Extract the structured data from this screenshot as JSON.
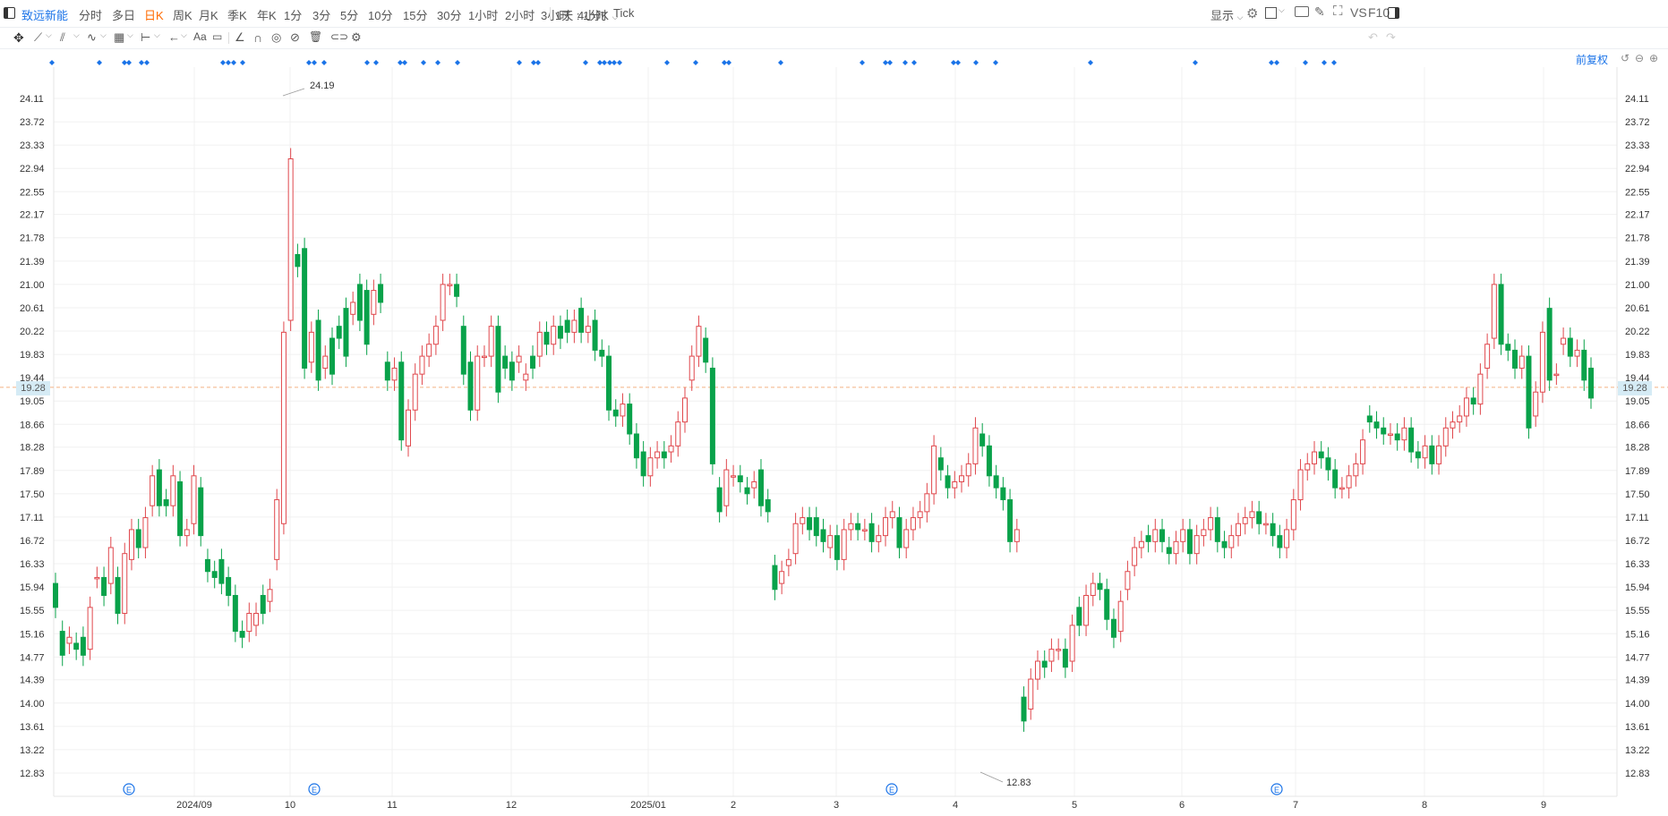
{
  "header": {
    "stock_name": "致远新能",
    "tabs": [
      "分时",
      "多日",
      "日K",
      "周K",
      "月K",
      "季K",
      "年K",
      "1分",
      "3分",
      "5分",
      "10分",
      "15分",
      "30分",
      "1小时",
      "2小时",
      "3小时",
      "4小时",
      "Tick"
    ],
    "active_tab": "日K",
    "period_select": "1天 : 1分K",
    "display_label": "显示",
    "vs_label": "VS",
    "f10_label": "F10"
  },
  "chart": {
    "adjust_label": "前复权",
    "y_ticks": [
      "24.11",
      "23.72",
      "23.33",
      "22.94",
      "22.55",
      "22.17",
      "21.78",
      "21.39",
      "21.00",
      "20.61",
      "20.22",
      "19.83",
      "19.44",
      "19.05",
      "18.66",
      "18.28",
      "17.89",
      "17.50",
      "17.11",
      "16.72",
      "16.33",
      "15.94",
      "15.55",
      "15.16",
      "14.77",
      "14.39",
      "14.00",
      "13.61",
      "13.22",
      "12.83"
    ],
    "x_ticks": [
      "2024/09",
      "10",
      "11",
      "12",
      "2025/01",
      "2",
      "3",
      "4",
      "5",
      "6",
      "7",
      "8",
      "9"
    ],
    "current_price": "19.28",
    "max_label": "24.19",
    "min_label": "12.83",
    "event_marker": "E",
    "up_color": "#e0474c",
    "down_color": "#09a24a",
    "accent_color": "#1a73e8"
  },
  "chart_data": {
    "type": "candlestick",
    "ylim": [
      12.83,
      24.11
    ],
    "candles": [
      [
        16.0,
        15.6
      ],
      [
        15.2,
        14.8
      ],
      [
        15.0,
        15.1
      ],
      [
        15.0,
        14.9
      ],
      [
        15.1,
        14.8
      ],
      [
        14.9,
        15.6
      ],
      [
        16.1,
        16.1
      ],
      [
        16.1,
        15.8
      ],
      [
        16.0,
        16.6
      ],
      [
        16.1,
        15.5
      ],
      [
        15.5,
        16.5
      ],
      [
        16.4,
        16.9
      ],
      [
        16.9,
        16.6
      ],
      [
        16.6,
        17.1
      ],
      [
        17.3,
        17.8
      ],
      [
        17.9,
        17.3
      ],
      [
        17.4,
        17.3
      ],
      [
        17.3,
        17.8
      ],
      [
        17.7,
        16.8
      ],
      [
        16.8,
        16.9
      ],
      [
        17.0,
        17.8
      ],
      [
        17.6,
        16.8
      ],
      [
        16.4,
        16.2
      ],
      [
        16.2,
        16.1
      ],
      [
        16.4,
        16.0
      ],
      [
        16.1,
        15.8
      ],
      [
        15.8,
        15.2
      ],
      [
        15.2,
        15.1
      ],
      [
        15.2,
        15.5
      ],
      [
        15.3,
        15.5
      ],
      [
        15.8,
        15.5
      ],
      [
        15.7,
        15.9
      ],
      [
        16.4,
        17.4
      ],
      [
        17.0,
        20.2
      ],
      [
        20.4,
        23.1
      ],
      [
        21.5,
        21.3
      ],
      [
        21.6,
        19.6
      ],
      [
        19.7,
        20.2
      ],
      [
        20.4,
        19.4
      ],
      [
        19.6,
        19.8
      ],
      [
        20.1,
        19.5
      ],
      [
        20.3,
        20.1
      ],
      [
        20.6,
        19.8
      ],
      [
        20.5,
        20.7
      ],
      [
        21.0,
        20.4
      ],
      [
        20.9,
        20.0
      ],
      [
        20.5,
        20.9
      ],
      [
        21.0,
        20.7
      ],
      [
        19.7,
        19.4
      ],
      [
        19.4,
        19.6
      ],
      [
        19.7,
        18.4
      ],
      [
        18.3,
        18.9
      ],
      [
        18.9,
        19.5
      ],
      [
        19.5,
        19.8
      ],
      [
        19.8,
        20.0
      ],
      [
        20.0,
        20.3
      ],
      [
        20.4,
        21.0
      ],
      [
        21.0,
        21.0
      ],
      [
        21.0,
        20.8
      ],
      [
        20.3,
        19.5
      ],
      [
        19.7,
        18.9
      ],
      [
        18.9,
        19.8
      ],
      [
        19.8,
        19.8
      ],
      [
        19.8,
        20.3
      ],
      [
        20.3,
        19.2
      ],
      [
        19.8,
        19.6
      ],
      [
        19.7,
        19.4
      ],
      [
        19.7,
        19.8
      ],
      [
        19.4,
        19.5
      ],
      [
        19.8,
        19.6
      ],
      [
        19.8,
        20.2
      ],
      [
        20.2,
        20.0
      ],
      [
        20.0,
        20.3
      ],
      [
        20.3,
        20.1
      ],
      [
        20.4,
        20.2
      ],
      [
        20.2,
        20.4
      ],
      [
        20.6,
        20.2
      ],
      [
        20.2,
        20.3
      ],
      [
        20.4,
        19.9
      ],
      [
        19.9,
        19.8
      ],
      [
        19.8,
        18.9
      ],
      [
        18.9,
        18.8
      ],
      [
        18.8,
        19.0
      ],
      [
        19.0,
        18.5
      ],
      [
        18.5,
        18.1
      ],
      [
        18.2,
        17.8
      ],
      [
        17.8,
        18.1
      ],
      [
        18.1,
        18.2
      ],
      [
        18.2,
        18.1
      ],
      [
        18.2,
        18.3
      ],
      [
        18.3,
        18.7
      ],
      [
        18.7,
        19.1
      ],
      [
        19.4,
        19.8
      ],
      [
        19.8,
        20.3
      ],
      [
        20.1,
        19.7
      ],
      [
        19.6,
        18.0
      ],
      [
        17.6,
        17.2
      ],
      [
        17.3,
        17.9
      ],
      [
        17.8,
        17.8
      ],
      [
        17.8,
        17.7
      ],
      [
        17.6,
        17.5
      ],
      [
        17.6,
        17.7
      ],
      [
        17.9,
        17.3
      ],
      [
        17.4,
        17.2
      ],
      [
        16.3,
        15.9
      ],
      [
        16.0,
        16.2
      ],
      [
        16.3,
        16.4
      ],
      [
        16.5,
        17.0
      ],
      [
        17.0,
        17.1
      ],
      [
        17.1,
        16.9
      ],
      [
        17.1,
        16.8
      ],
      [
        16.9,
        16.7
      ],
      [
        16.6,
        16.8
      ],
      [
        16.8,
        16.4
      ],
      [
        16.4,
        16.9
      ],
      [
        16.9,
        17.0
      ],
      [
        17.0,
        16.9
      ],
      [
        16.9,
        16.9
      ],
      [
        17.0,
        16.7
      ],
      [
        16.7,
        16.8
      ],
      [
        16.8,
        17.1
      ],
      [
        17.1,
        17.2
      ],
      [
        17.1,
        16.6
      ],
      [
        16.6,
        16.9
      ],
      [
        16.9,
        17.1
      ],
      [
        17.1,
        17.2
      ],
      [
        17.2,
        17.5
      ],
      [
        17.5,
        18.3
      ],
      [
        18.1,
        17.9
      ],
      [
        17.8,
        17.6
      ],
      [
        17.6,
        17.7
      ],
      [
        17.7,
        17.8
      ],
      [
        17.8,
        18.0
      ],
      [
        18.0,
        18.6
      ],
      [
        18.5,
        18.3
      ],
      [
        18.3,
        17.8
      ],
      [
        17.8,
        17.6
      ],
      [
        17.6,
        17.4
      ],
      [
        17.4,
        16.7
      ],
      [
        16.7,
        16.9
      ],
      [
        14.1,
        13.7
      ],
      [
        13.9,
        14.4
      ],
      [
        14.4,
        14.7
      ],
      [
        14.7,
        14.6
      ],
      [
        14.7,
        14.9
      ],
      [
        14.9,
        14.9
      ],
      [
        14.9,
        14.6
      ],
      [
        14.7,
        15.3
      ],
      [
        15.6,
        15.3
      ],
      [
        15.3,
        15.8
      ],
      [
        15.8,
        16.0
      ],
      [
        16.0,
        15.9
      ],
      [
        15.9,
        15.4
      ],
      [
        15.4,
        15.1
      ],
      [
        15.2,
        15.7
      ],
      [
        15.9,
        16.2
      ],
      [
        16.3,
        16.6
      ],
      [
        16.6,
        16.7
      ],
      [
        16.8,
        16.7
      ],
      [
        16.7,
        16.9
      ],
      [
        16.9,
        16.7
      ],
      [
        16.6,
        16.5
      ],
      [
        16.5,
        16.7
      ],
      [
        16.7,
        16.9
      ],
      [
        16.9,
        16.5
      ],
      [
        16.5,
        16.8
      ],
      [
        16.8,
        16.9
      ],
      [
        16.9,
        17.1
      ],
      [
        17.1,
        16.7
      ],
      [
        16.7,
        16.6
      ],
      [
        16.6,
        16.8
      ],
      [
        16.8,
        17.0
      ],
      [
        17.0,
        17.1
      ],
      [
        17.1,
        17.2
      ],
      [
        17.2,
        17.0
      ],
      [
        17.0,
        17.0
      ],
      [
        17.0,
        16.8
      ],
      [
        16.8,
        16.6
      ],
      [
        16.6,
        16.9
      ],
      [
        16.9,
        17.4
      ],
      [
        17.4,
        17.9
      ],
      [
        17.9,
        18.0
      ],
      [
        18.0,
        18.2
      ],
      [
        18.2,
        18.1
      ],
      [
        18.1,
        17.9
      ],
      [
        17.9,
        17.6
      ],
      [
        17.6,
        17.6
      ],
      [
        17.6,
        17.8
      ],
      [
        17.8,
        18.0
      ],
      [
        18.0,
        18.4
      ],
      [
        18.8,
        18.7
      ],
      [
        18.7,
        18.6
      ],
      [
        18.6,
        18.5
      ],
      [
        18.5,
        18.5
      ],
      [
        18.5,
        18.4
      ],
      [
        18.4,
        18.6
      ],
      [
        18.6,
        18.2
      ],
      [
        18.2,
        18.1
      ],
      [
        18.1,
        18.3
      ],
      [
        18.3,
        18.0
      ],
      [
        18.0,
        18.3
      ],
      [
        18.3,
        18.6
      ],
      [
        18.6,
        18.7
      ],
      [
        18.7,
        18.8
      ],
      [
        18.8,
        19.1
      ],
      [
        19.1,
        19.0
      ],
      [
        19.0,
        19.5
      ],
      [
        19.6,
        20.0
      ],
      [
        20.1,
        21.0
      ],
      [
        21.0,
        20.0
      ],
      [
        20.0,
        19.9
      ],
      [
        19.9,
        19.6
      ],
      [
        19.6,
        19.8
      ],
      [
        19.8,
        18.6
      ],
      [
        18.8,
        19.2
      ],
      [
        19.2,
        20.2
      ],
      [
        20.6,
        19.4
      ],
      [
        19.5,
        19.5
      ],
      [
        20.0,
        20.1
      ],
      [
        20.1,
        19.8
      ],
      [
        19.8,
        19.9
      ],
      [
        19.9,
        19.4
      ],
      [
        19.6,
        19.1
      ]
    ]
  },
  "event_dots": [
    58,
    111,
    139,
    144,
    158,
    164,
    249,
    255,
    261,
    271,
    345,
    351,
    362,
    410,
    420,
    447,
    452,
    473,
    489,
    511,
    580,
    596,
    601,
    654,
    670,
    675,
    681,
    686,
    692,
    745,
    777,
    809,
    814,
    872,
    963,
    989,
    994,
    1011,
    1021,
    1065,
    1070,
    1090,
    1112,
    1218,
    1335,
    1420,
    1426,
    1458,
    1479,
    1490
  ],
  "event_E_positions": [
    144,
    351,
    996,
    1426
  ]
}
